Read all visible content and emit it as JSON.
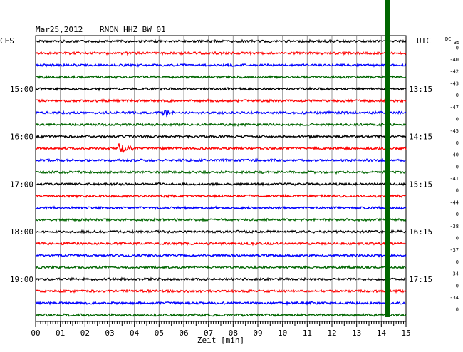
{
  "header": {
    "date": "Mar25,2012",
    "station": "RNON HHZ BW 01",
    "left_zone": "CES",
    "right_zone": "UTC",
    "dc_label": "DC",
    "dc_first": "35"
  },
  "chart_data": {
    "type": "line",
    "title": "Mar25,2012   RNON HHZ BW 01",
    "xlabel": "Zeit [min]",
    "xlim": [
      0,
      15
    ],
    "x_ticks": [
      "00",
      "01",
      "02",
      "03",
      "04",
      "05",
      "06",
      "07",
      "08",
      "09",
      "10",
      "11",
      "12",
      "13",
      "14",
      "15"
    ],
    "trace_count": 24,
    "trace_colors": [
      "#000000",
      "#ff0000",
      "#0000ff",
      "#006600"
    ],
    "left_time_labels": [
      {
        "trace": 4,
        "label": "15:00"
      },
      {
        "trace": 8,
        "label": "16:00"
      },
      {
        "trace": 12,
        "label": "17:00"
      },
      {
        "trace": 16,
        "label": "18:00"
      },
      {
        "trace": 20,
        "label": "19:00"
      }
    ],
    "right_time_labels": [
      {
        "trace": 4,
        "label": "13:15"
      },
      {
        "trace": 8,
        "label": "14:15"
      },
      {
        "trace": 12,
        "label": "15:15"
      },
      {
        "trace": 16,
        "label": "16:15"
      },
      {
        "trace": 20,
        "label": "17:15"
      }
    ],
    "dc_offsets": [
      "0",
      "-40",
      "-42",
      "-43",
      "0",
      "-47",
      "0",
      "-45",
      "0",
      "-40",
      "0",
      "-41",
      "0",
      "-44",
      "0",
      "-38",
      "0",
      "-37",
      "0",
      "-34",
      "0",
      "-34",
      "0"
    ],
    "events": [
      {
        "trace": 1,
        "minute": 3.6,
        "amplitude": 5,
        "duration": 0.6
      },
      {
        "trace": 6,
        "minute": 5.2,
        "amplitude": 7,
        "duration": 1.0
      },
      {
        "trace": 8,
        "minute": 11.1,
        "amplitude": 3,
        "duration": 0.2
      },
      {
        "trace": 9,
        "minute": 3.4,
        "amplitude": 10,
        "duration": 1.2
      }
    ],
    "marker": {
      "minute": 14.25,
      "color": "#006600"
    }
  }
}
